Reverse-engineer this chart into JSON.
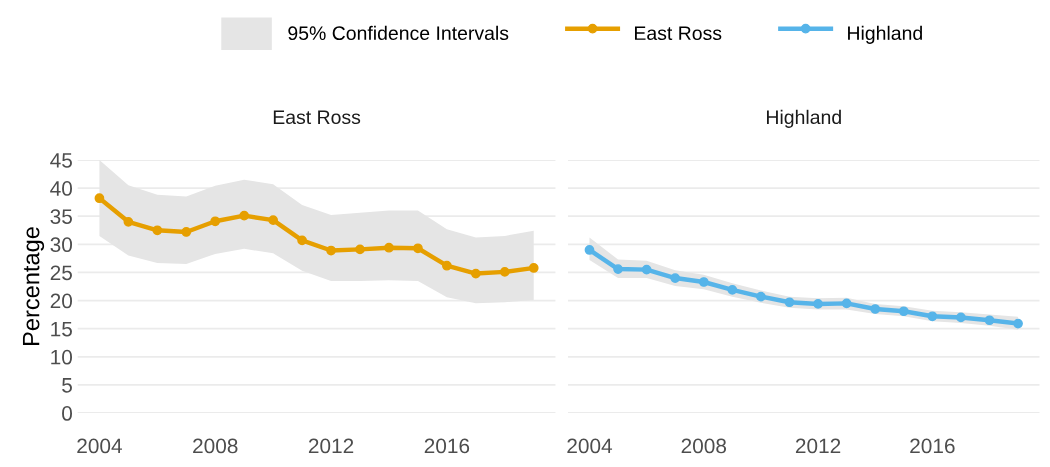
{
  "chart_data": [
    {
      "type": "line",
      "title": "East Ross",
      "ylabel": "Percentage",
      "x": [
        2004,
        2005,
        2006,
        2007,
        2008,
        2009,
        2010,
        2011,
        2012,
        2013,
        2014,
        2015,
        2016,
        2017,
        2018,
        2019
      ],
      "series": [
        {
          "name": "East Ross",
          "color": "#e69f00",
          "values": [
            38.2,
            34.0,
            32.5,
            32.2,
            34.1,
            35.1,
            34.3,
            30.7,
            28.9,
            29.1,
            29.4,
            29.3,
            26.2,
            24.8,
            25.1,
            25.8
          ],
          "lower": [
            31.5,
            28.0,
            26.7,
            26.5,
            28.3,
            29.2,
            28.4,
            25.3,
            23.5,
            23.5,
            23.6,
            23.5,
            20.6,
            19.5,
            19.7,
            20.1
          ],
          "upper": [
            45.0,
            40.5,
            38.8,
            38.5,
            40.4,
            41.5,
            40.7,
            37.0,
            35.2,
            35.6,
            36.0,
            36.0,
            32.7,
            31.2,
            31.5,
            32.4
          ]
        }
      ],
      "annotations": [
        "95% Confidence Intervals"
      ],
      "xlim": [
        2003.25,
        2019.75
      ],
      "xticks": [
        2004,
        2008,
        2012,
        2016
      ],
      "ylim": [
        0,
        45
      ],
      "yticks": [
        0,
        5,
        10,
        15,
        20,
        25,
        30,
        35,
        40,
        45
      ],
      "grid": "y",
      "legend": "top",
      "marker": "circle",
      "line_style": "solid"
    },
    {
      "type": "line",
      "title": "Highland",
      "x": [
        2004,
        2005,
        2006,
        2007,
        2008,
        2009,
        2010,
        2011,
        2012,
        2013,
        2014,
        2015,
        2016,
        2017,
        2018,
        2019
      ],
      "series": [
        {
          "name": "Highland",
          "color": "#56b4e9",
          "values": [
            29.0,
            25.6,
            25.5,
            24.0,
            23.3,
            21.9,
            20.7,
            19.7,
            19.4,
            19.5,
            18.5,
            18.1,
            17.2,
            17.0,
            16.5,
            15.9
          ],
          "lower": [
            27.2,
            24.0,
            24.0,
            22.6,
            22.0,
            20.7,
            19.6,
            18.7,
            18.4,
            18.4,
            17.6,
            17.2,
            16.3,
            16.0,
            15.5,
            14.8
          ],
          "upper": [
            31.2,
            27.3,
            27.1,
            25.4,
            24.6,
            23.1,
            21.8,
            20.7,
            20.4,
            20.5,
            19.4,
            19.0,
            18.2,
            17.9,
            17.5,
            17.1
          ]
        }
      ],
      "xlim": [
        2003.25,
        2019.75
      ],
      "xticks": [
        2004,
        2008,
        2012,
        2016
      ],
      "ylim": [
        0,
        45
      ],
      "yticks": [
        0,
        5,
        10,
        15,
        20,
        25,
        30,
        35,
        40,
        45
      ],
      "grid": "y",
      "legend": "top",
      "marker": "circle",
      "line_style": "solid",
      "tick_labels": "x"
    }
  ]
}
